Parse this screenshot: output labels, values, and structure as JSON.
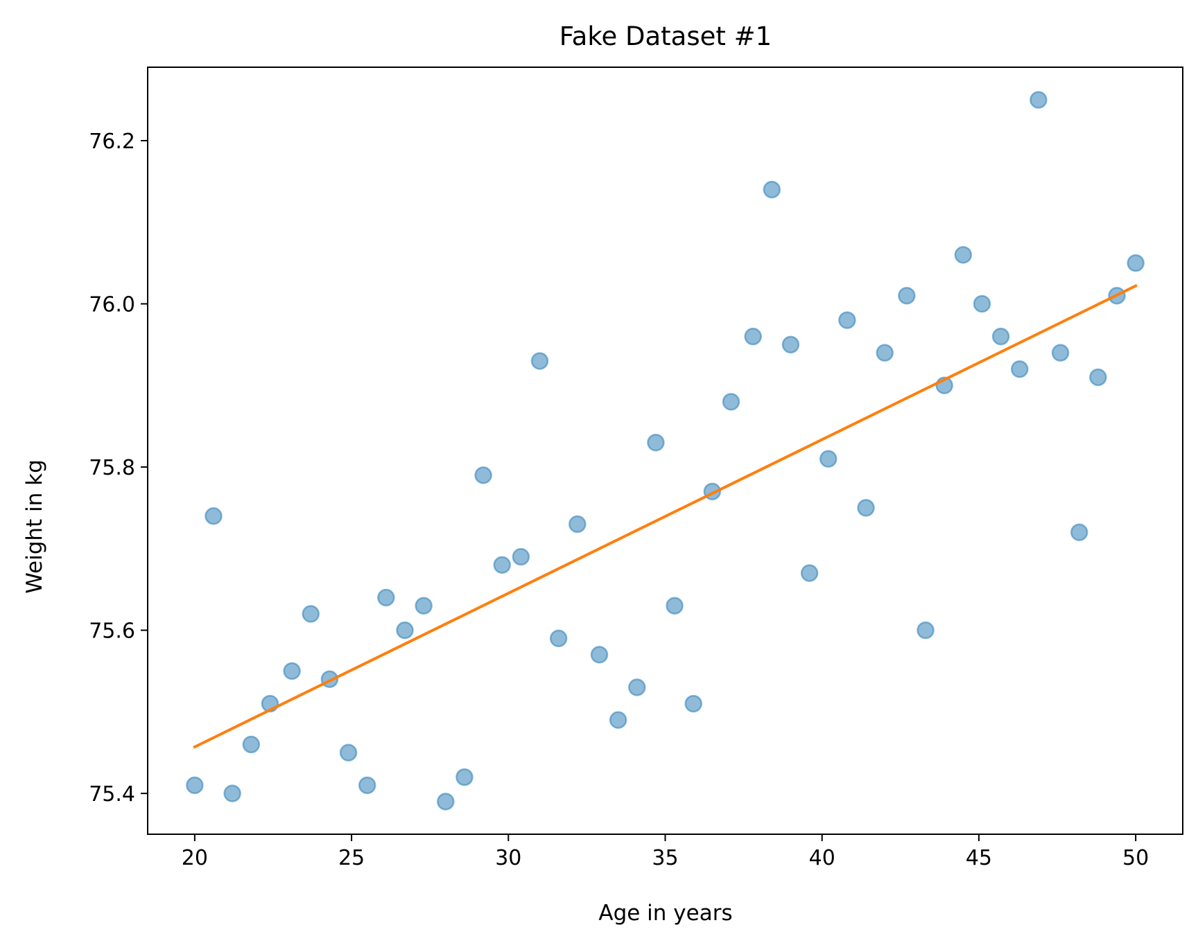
{
  "chart_data": {
    "type": "scatter",
    "title": "Fake Dataset #1",
    "xlabel": "Age in years",
    "ylabel": "Weight in kg",
    "xlim": [
      18.5,
      51.5
    ],
    "ylim": [
      75.35,
      76.29
    ],
    "xticks": [
      20,
      25,
      30,
      35,
      40,
      45,
      50
    ],
    "yticks": [
      75.4,
      75.6,
      75.8,
      76.0,
      76.2
    ],
    "xtick_labels": [
      "20",
      "25",
      "30",
      "35",
      "40",
      "45",
      "50"
    ],
    "ytick_labels": [
      "75.4",
      "75.6",
      "75.8",
      "76.0",
      "76.2"
    ],
    "grid": false,
    "colors": {
      "points": "#1f77b4",
      "fit": "#ff7f0e"
    },
    "points": {
      "x": [
        20.0,
        20.6,
        21.2,
        21.8,
        22.4,
        23.1,
        23.7,
        24.3,
        24.9,
        25.5,
        26.1,
        26.7,
        27.3,
        28.0,
        28.6,
        29.2,
        29.8,
        30.4,
        31.0,
        31.6,
        32.2,
        32.9,
        33.5,
        34.1,
        34.7,
        35.3,
        35.9,
        36.5,
        37.1,
        37.8,
        38.4,
        39.0,
        39.6,
        40.2,
        40.8,
        41.4,
        42.0,
        42.7,
        43.3,
        43.9,
        44.5,
        45.1,
        45.7,
        46.3,
        46.9,
        47.6,
        48.2,
        48.8,
        49.4,
        50.0
      ],
      "y": [
        75.41,
        75.74,
        75.4,
        75.46,
        75.51,
        75.55,
        75.62,
        75.54,
        75.45,
        75.41,
        75.64,
        75.6,
        75.63,
        75.39,
        75.42,
        75.79,
        75.68,
        75.69,
        75.93,
        75.59,
        75.73,
        75.57,
        75.49,
        75.53,
        75.83,
        75.63,
        75.51,
        75.77,
        75.88,
        75.96,
        76.14,
        75.95,
        75.67,
        75.81,
        75.98,
        75.75,
        75.94,
        76.01,
        75.6,
        75.9,
        76.06,
        76.0,
        75.96,
        75.92,
        76.25,
        75.94,
        75.72,
        75.91,
        76.01,
        76.05
      ]
    },
    "fit_line": {
      "x": [
        20,
        50
      ],
      "y": [
        75.457,
        76.022
      ]
    }
  }
}
